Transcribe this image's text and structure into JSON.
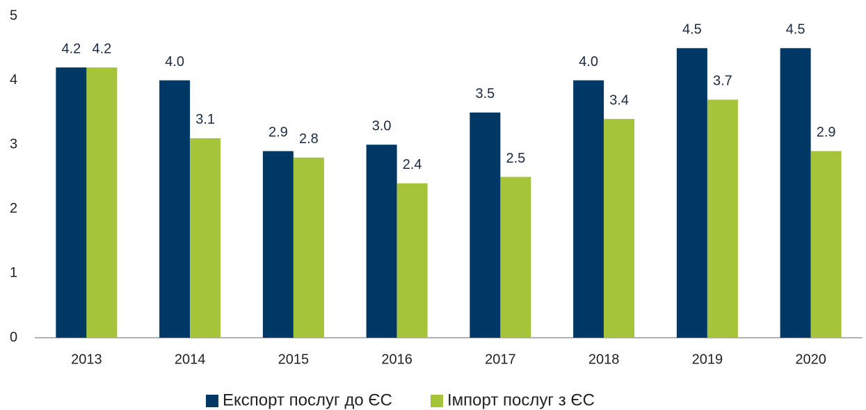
{
  "chart_data": {
    "type": "bar",
    "categories": [
      "2013",
      "2014",
      "2015",
      "2016",
      "2017",
      "2018",
      "2019",
      "2020"
    ],
    "series": [
      {
        "name": "Експорт послуг до ЄС",
        "color": "#003865",
        "values": [
          4.2,
          4.0,
          2.9,
          3.0,
          3.5,
          4.0,
          4.5,
          4.5
        ],
        "value_labels": [
          "4.2",
          "4.0",
          "2.9",
          "3.0",
          "3.5",
          "4.0",
          "4.5",
          "4.5"
        ]
      },
      {
        "name": "Імпорт послуг з ЄС",
        "color": "#a6c43a",
        "values": [
          4.2,
          3.1,
          2.8,
          2.4,
          2.5,
          3.4,
          3.7,
          2.9
        ],
        "value_labels": [
          "4.2",
          "3.1",
          "2.8",
          "2.4",
          "2.5",
          "3.4",
          "3.7",
          "2.9"
        ]
      }
    ],
    "ylim": [
      0,
      5
    ],
    "yticks": [
      0,
      1,
      2,
      3,
      4,
      5
    ],
    "legend": "bottom"
  }
}
